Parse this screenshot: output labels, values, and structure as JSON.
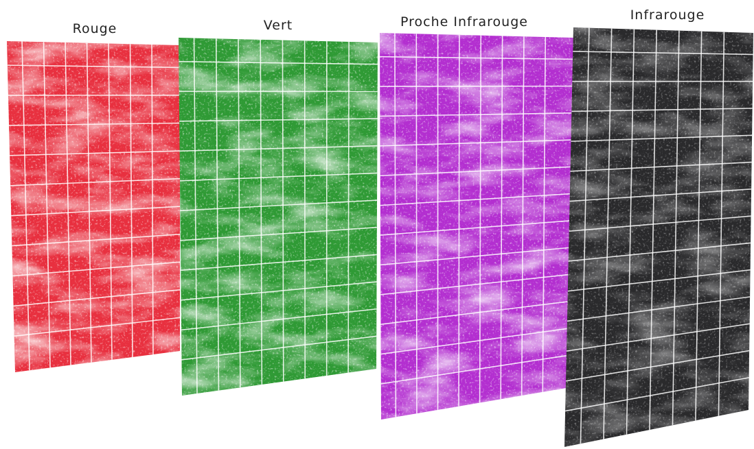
{
  "panels": [
    {
      "label": "Rouge"
    },
    {
      "label": "Vert"
    },
    {
      "label": "Proche Infrarouge"
    },
    {
      "label": "Infrarouge"
    }
  ]
}
